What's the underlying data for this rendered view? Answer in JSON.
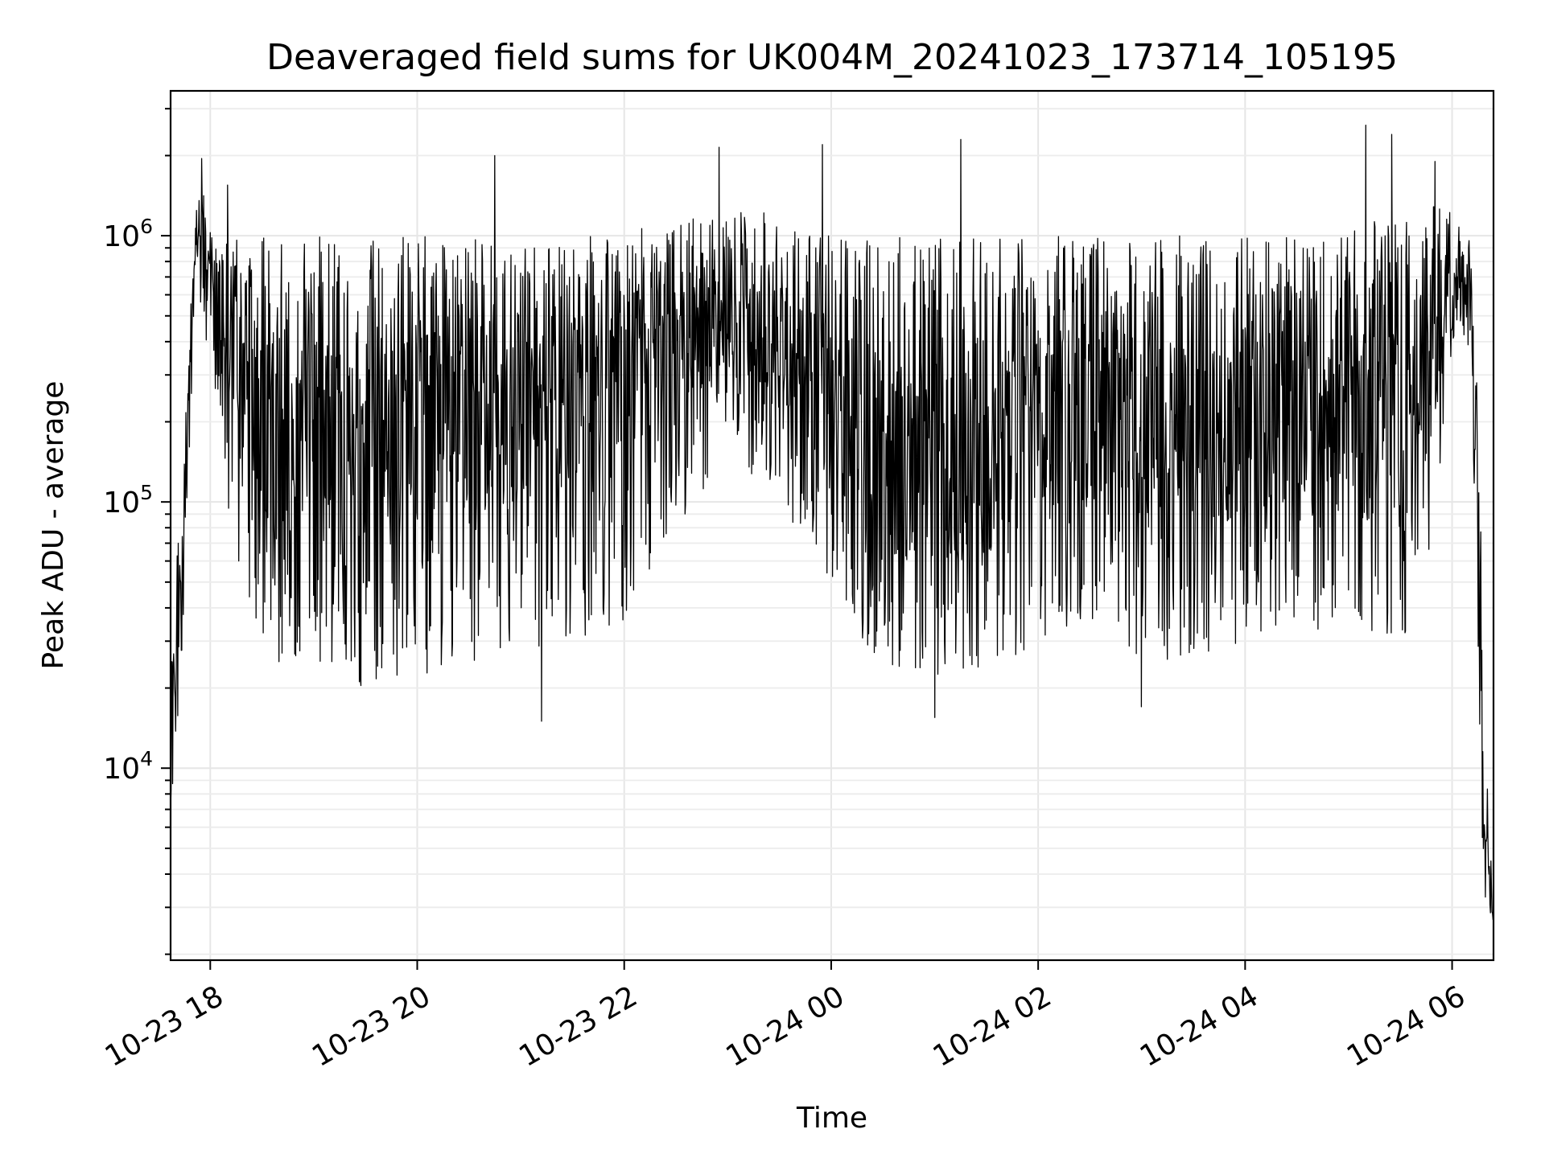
{
  "chart_data": {
    "type": "line",
    "title": "Deaveraged field sums for UK004M_20241023_173714_105195",
    "xlabel": "Time",
    "ylabel": "Peak ADU - average",
    "yscale": "log",
    "grid": true,
    "grid_color": "#e6e6e6",
    "line_color": "#000000",
    "xlim": [
      "2024-10-23 17:37",
      "2024-10-24 06:24"
    ],
    "ylim": [
      1900,
      3500000
    ],
    "x_ticks": [
      {
        "value": "2024-10-23 18:00",
        "label": "10-23 18"
      },
      {
        "value": "2024-10-23 20:00",
        "label": "10-23 20"
      },
      {
        "value": "2024-10-23 22:00",
        "label": "10-23 22"
      },
      {
        "value": "2024-10-24 00:00",
        "label": "10-24 00"
      },
      {
        "value": "2024-10-24 02:00",
        "label": "10-24 02"
      },
      {
        "value": "2024-10-24 04:00",
        "label": "10-24 04"
      },
      {
        "value": "2024-10-24 06:00",
        "label": "10-24 06"
      }
    ],
    "y_ticks": [
      {
        "value": 10000,
        "base": "10",
        "exp": "4"
      },
      {
        "value": 100000,
        "base": "10",
        "exp": "5"
      },
      {
        "value": 1000000,
        "base": "10",
        "exp": "6"
      }
    ],
    "series": [
      {
        "name": "",
        "x": [
          "2024-10-23 17:37",
          "2024-10-23 17:40",
          "2024-10-23 17:44",
          "2024-10-23 17:48",
          "2024-10-23 17:52",
          "2024-10-23 17:55",
          "2024-10-23 17:59",
          "2024-10-23 18:05",
          "2024-10-23 18:10",
          "2024-10-23 18:20",
          "2024-10-23 18:30",
          "2024-10-23 18:40",
          "2024-10-23 19:00",
          "2024-10-23 19:30",
          "2024-10-23 20:00",
          "2024-10-23 20:30",
          "2024-10-23 21:00",
          "2024-10-23 21:30",
          "2024-10-23 22:00",
          "2024-10-23 22:30",
          "2024-10-23 23:00",
          "2024-10-23 23:30",
          "2024-10-24 00:00",
          "2024-10-24 00:30",
          "2024-10-24 01:00",
          "2024-10-24 01:30",
          "2024-10-24 02:00",
          "2024-10-24 02:30",
          "2024-10-24 03:00",
          "2024-10-24 03:30",
          "2024-10-24 04:00",
          "2024-10-24 04:30",
          "2024-10-24 05:00",
          "2024-10-24 05:30",
          "2024-10-24 05:45",
          "2024-10-24 05:55",
          "2024-10-24 06:00",
          "2024-10-24 06:05",
          "2024-10-24 06:10",
          "2024-10-24 06:13",
          "2024-10-24 06:16",
          "2024-10-24 06:20",
          "2024-10-24 06:24"
        ],
        "y_upper": [
          40000,
          50000,
          150000,
          500000,
          1400000,
          1700000,
          1000000,
          1200000,
          1100000,
          1000000,
          1000000,
          1000000,
          1000000,
          1000000,
          1000000,
          1000000,
          1000000,
          1000000,
          1000000,
          1200000,
          1300000,
          1200000,
          1000000,
          1000000,
          1000000,
          1000000,
          1000000,
          1000000,
          1000000,
          1000000,
          1000000,
          1000000,
          1100000,
          1200000,
          1300000,
          1300000,
          1200000,
          1100000,
          1000000,
          500000,
          150000,
          10000,
          5000
        ],
        "y_mid": [
          15000,
          25000,
          60000,
          300000,
          1000000,
          900000,
          700000,
          500000,
          400000,
          250000,
          200000,
          180000,
          170000,
          170000,
          200000,
          220000,
          200000,
          250000,
          300000,
          450000,
          500000,
          400000,
          250000,
          150000,
          140000,
          140000,
          200000,
          220000,
          200000,
          170000,
          200000,
          220000,
          200000,
          180000,
          300000,
          500000,
          650000,
          700000,
          650000,
          300000,
          40000,
          4000,
          3000
        ],
        "y_lower": [
          7000,
          12000,
          30000,
          150000,
          800000,
          500000,
          350000,
          200000,
          100000,
          40000,
          30000,
          25000,
          25000,
          20000,
          22000,
          25000,
          28000,
          30000,
          35000,
          80000,
          150000,
          100000,
          40000,
          25000,
          22000,
          22000,
          30000,
          35000,
          25000,
          25000,
          30000,
          35000,
          30000,
          30000,
          40000,
          150000,
          400000,
          450000,
          350000,
          100000,
          8000,
          2600,
          2700
        ],
        "spikes": [
          {
            "x": "2024-10-23 17:55",
            "y": 1950000
          },
          {
            "x": "2024-10-23 18:10",
            "y": 1550000
          },
          {
            "x": "2024-10-23 20:45",
            "y": 2000000
          },
          {
            "x": "2024-10-23 21:12",
            "y": 15000
          },
          {
            "x": "2024-10-23 22:55",
            "y": 2150000
          },
          {
            "x": "2024-10-23 23:55",
            "y": 2200000
          },
          {
            "x": "2024-10-24 01:00",
            "y": 15500
          },
          {
            "x": "2024-10-24 01:15",
            "y": 2300000
          },
          {
            "x": "2024-10-24 03:00",
            "y": 17000
          },
          {
            "x": "2024-10-24 05:10",
            "y": 2600000
          },
          {
            "x": "2024-10-24 05:25",
            "y": 2400000
          },
          {
            "x": "2024-10-24 05:50",
            "y": 1900000
          }
        ]
      }
    ]
  }
}
